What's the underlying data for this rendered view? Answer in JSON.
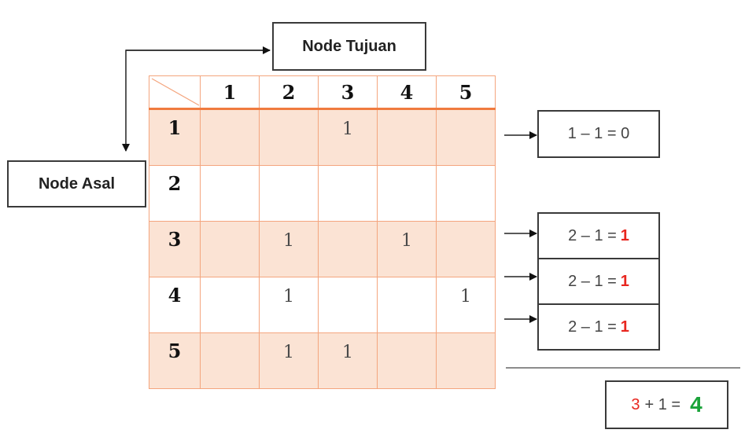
{
  "labels": {
    "node_tujuan": "Node Tujuan",
    "node_asal": "Node Asal"
  },
  "matrix": {
    "columns": [
      "1",
      "2",
      "3",
      "4",
      "5"
    ],
    "rows": [
      {
        "label": "1",
        "cells": [
          "",
          "",
          "1",
          "",
          ""
        ]
      },
      {
        "label": "2",
        "cells": [
          "",
          "",
          "",
          "",
          ""
        ]
      },
      {
        "label": "3",
        "cells": [
          "",
          "1",
          "",
          "1",
          ""
        ]
      },
      {
        "label": "4",
        "cells": [
          "",
          "1",
          "",
          "",
          "1"
        ]
      },
      {
        "label": "5",
        "cells": [
          "",
          "1",
          "1",
          "",
          ""
        ]
      }
    ]
  },
  "calculations": [
    {
      "text": "1 – 1 = 0",
      "result": ""
    },
    {
      "text": "2 – 1 =",
      "result": "1"
    },
    {
      "text": "2 – 1 =",
      "result": "1"
    },
    {
      "text": "2 – 1 =",
      "result": "1"
    }
  ],
  "total": {
    "a": "3",
    "op": "+ 1 =",
    "result": "4"
  },
  "colors": {
    "shade": "#fbe3d4",
    "grid": "#f4a57e",
    "red": "#e8261f",
    "green": "#1aa33a"
  }
}
